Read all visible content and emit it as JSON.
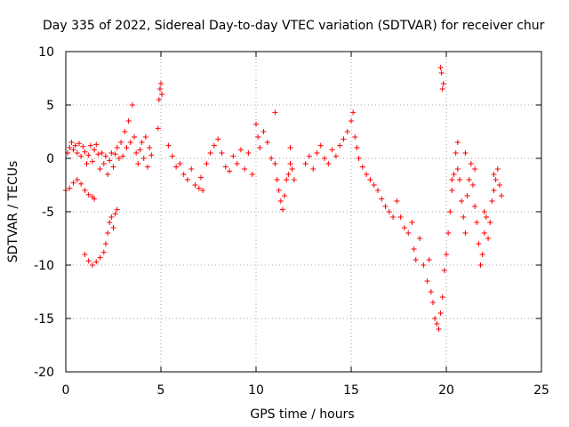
{
  "chart_data": {
    "type": "scatter",
    "title": "Day 335 of 2022, Sidereal Day-to-day VTEC variation (SDTVAR) for receiver chur",
    "xlabel": "GPS time / hours",
    "ylabel": "SDTVAR / TECUs",
    "xlim": [
      0,
      25
    ],
    "ylim": [
      -20,
      10
    ],
    "xticks": [
      0,
      5,
      10,
      15,
      20,
      25
    ],
    "yticks": [
      -20,
      -15,
      -10,
      -5,
      0,
      5,
      10
    ],
    "xtick_labels": [
      "0",
      "5",
      "10",
      "15",
      "20",
      "25"
    ],
    "ytick_labels": [
      "-20",
      "-15",
      "-10",
      "-5",
      "0",
      "5",
      "10"
    ],
    "grid": true,
    "marker": "+",
    "color": "#ff0000",
    "series": [
      {
        "name": "SDTVAR",
        "points": [
          [
            0.0,
            -3.0
          ],
          [
            0.1,
            0.5
          ],
          [
            0.2,
            1.0
          ],
          [
            0.3,
            1.5
          ],
          [
            0.4,
            0.8
          ],
          [
            0.5,
            1.2
          ],
          [
            0.6,
            0.5
          ],
          [
            0.7,
            1.4
          ],
          [
            0.8,
            0.2
          ],
          [
            0.9,
            1.1
          ],
          [
            1.0,
            0.6
          ],
          [
            1.1,
            -0.5
          ],
          [
            1.2,
            0.3
          ],
          [
            1.3,
            1.2
          ],
          [
            1.4,
            -0.3
          ],
          [
            1.5,
            0.8
          ],
          [
            1.6,
            1.3
          ],
          [
            1.7,
            0.4
          ],
          [
            1.8,
            -1.0
          ],
          [
            1.9,
            0.5
          ],
          [
            2.0,
            -0.5
          ],
          [
            2.1,
            0.2
          ],
          [
            2.2,
            -1.5
          ],
          [
            2.3,
            -0.2
          ],
          [
            2.4,
            0.5
          ],
          [
            2.5,
            -0.8
          ],
          [
            2.6,
            0.4
          ],
          [
            2.7,
            1.0
          ],
          [
            2.8,
            0.0
          ],
          [
            2.9,
            1.5
          ],
          [
            3.0,
            0.2
          ],
          [
            3.1,
            2.5
          ],
          [
            3.2,
            1.0
          ],
          [
            3.3,
            3.5
          ],
          [
            3.4,
            1.5
          ],
          [
            3.5,
            5.0
          ],
          [
            3.6,
            2.0
          ],
          [
            3.7,
            0.5
          ],
          [
            3.8,
            -0.5
          ],
          [
            3.9,
            0.8
          ],
          [
            4.0,
            1.5
          ],
          [
            4.1,
            0.0
          ],
          [
            4.2,
            2.0
          ],
          [
            4.3,
            -0.8
          ],
          [
            4.4,
            1.0
          ],
          [
            4.5,
            0.3
          ],
          [
            0.2,
            -2.8
          ],
          [
            0.4,
            -2.3
          ],
          [
            0.6,
            -2.0
          ],
          [
            0.8,
            -2.4
          ],
          [
            1.0,
            -3.0
          ],
          [
            1.2,
            -3.4
          ],
          [
            1.4,
            -3.6
          ],
          [
            1.5,
            -3.8
          ],
          [
            1.0,
            -9.0
          ],
          [
            1.2,
            -9.6
          ],
          [
            1.4,
            -10.0
          ],
          [
            1.6,
            -9.7
          ],
          [
            1.8,
            -9.3
          ],
          [
            2.0,
            -8.8
          ],
          [
            2.1,
            -8.0
          ],
          [
            2.2,
            -7.0
          ],
          [
            2.3,
            -6.0
          ],
          [
            2.4,
            -5.5
          ],
          [
            2.5,
            -6.5
          ],
          [
            2.6,
            -5.2
          ],
          [
            2.7,
            -4.8
          ],
          [
            4.85,
            2.8
          ],
          [
            4.9,
            5.5
          ],
          [
            4.95,
            6.5
          ],
          [
            5.0,
            7.0
          ],
          [
            5.05,
            6.0
          ],
          [
            5.4,
            1.2
          ],
          [
            5.6,
            0.2
          ],
          [
            5.8,
            -0.8
          ],
          [
            6.0,
            -0.5
          ],
          [
            6.2,
            -1.5
          ],
          [
            6.4,
            -2.0
          ],
          [
            6.6,
            -1.0
          ],
          [
            6.8,
            -2.5
          ],
          [
            7.0,
            -2.8
          ],
          [
            7.1,
            -1.8
          ],
          [
            7.2,
            -3.0
          ],
          [
            7.4,
            -0.5
          ],
          [
            7.6,
            0.5
          ],
          [
            7.8,
            1.2
          ],
          [
            8.0,
            1.8
          ],
          [
            8.2,
            0.5
          ],
          [
            8.4,
            -0.8
          ],
          [
            8.6,
            -1.2
          ],
          [
            8.8,
            0.2
          ],
          [
            9.0,
            -0.5
          ],
          [
            9.2,
            0.8
          ],
          [
            9.4,
            -1.0
          ],
          [
            9.6,
            0.5
          ],
          [
            9.8,
            -1.5
          ],
          [
            10.0,
            3.2
          ],
          [
            10.1,
            2.0
          ],
          [
            10.2,
            1.0
          ],
          [
            10.4,
            2.5
          ],
          [
            10.6,
            1.5
          ],
          [
            10.8,
            0.0
          ],
          [
            11.0,
            -0.5
          ],
          [
            11.1,
            -2.0
          ],
          [
            11.2,
            -3.0
          ],
          [
            11.3,
            -4.0
          ],
          [
            11.4,
            -4.8
          ],
          [
            11.5,
            -3.5
          ],
          [
            11.6,
            -2.0
          ],
          [
            11.7,
            -1.5
          ],
          [
            11.8,
            -0.5
          ],
          [
            11.9,
            -1.0
          ],
          [
            12.0,
            -2.0
          ],
          [
            11.0,
            4.3
          ],
          [
            11.8,
            1.0
          ],
          [
            12.6,
            -0.5
          ],
          [
            12.8,
            0.2
          ],
          [
            13.0,
            -1.0
          ],
          [
            13.2,
            0.5
          ],
          [
            13.4,
            1.2
          ],
          [
            13.6,
            0.0
          ],
          [
            13.8,
            -0.5
          ],
          [
            14.0,
            0.8
          ],
          [
            14.2,
            0.2
          ],
          [
            14.4,
            1.2
          ],
          [
            14.6,
            1.8
          ],
          [
            14.8,
            2.5
          ],
          [
            15.0,
            3.5
          ],
          [
            15.1,
            4.3
          ],
          [
            15.2,
            2.0
          ],
          [
            15.3,
            1.0
          ],
          [
            15.4,
            0.0
          ],
          [
            15.6,
            -0.8
          ],
          [
            15.8,
            -1.5
          ],
          [
            16.0,
            -2.0
          ],
          [
            16.2,
            -2.5
          ],
          [
            16.4,
            -3.0
          ],
          [
            16.6,
            -3.8
          ],
          [
            16.8,
            -4.5
          ],
          [
            17.0,
            -5.0
          ],
          [
            17.2,
            -5.5
          ],
          [
            17.4,
            -4.0
          ],
          [
            17.6,
            -5.5
          ],
          [
            17.8,
            -6.5
          ],
          [
            18.0,
            -7.0
          ],
          [
            18.2,
            -6.0
          ],
          [
            18.3,
            -8.5
          ],
          [
            18.4,
            -9.5
          ],
          [
            18.6,
            -7.5
          ],
          [
            18.8,
            -10.0
          ],
          [
            19.0,
            -11.5
          ],
          [
            19.1,
            -9.5
          ],
          [
            19.2,
            -12.5
          ],
          [
            19.3,
            -13.5
          ],
          [
            19.4,
            -15.0
          ],
          [
            19.5,
            -15.5
          ],
          [
            19.6,
            -16.0
          ],
          [
            19.7,
            -14.5
          ],
          [
            19.8,
            -13.0
          ],
          [
            19.9,
            -10.5
          ],
          [
            20.0,
            -9.0
          ],
          [
            20.1,
            -7.0
          ],
          [
            20.2,
            -5.0
          ],
          [
            20.3,
            -3.0
          ],
          [
            20.4,
            -1.5
          ],
          [
            20.5,
            0.5
          ],
          [
            20.6,
            -1.0
          ],
          [
            20.7,
            -2.0
          ],
          [
            20.8,
            -4.0
          ],
          [
            20.9,
            -5.5
          ],
          [
            21.0,
            -7.0
          ],
          [
            21.1,
            -3.5
          ],
          [
            21.2,
            -2.0
          ],
          [
            21.3,
            -0.5
          ],
          [
            21.4,
            -2.5
          ],
          [
            21.5,
            -4.5
          ],
          [
            21.6,
            -6.0
          ],
          [
            21.7,
            -8.0
          ],
          [
            21.8,
            -10.0
          ],
          [
            21.9,
            -9.0
          ],
          [
            22.0,
            -7.0
          ],
          [
            22.1,
            -5.5
          ],
          [
            22.2,
            -7.5
          ],
          [
            22.3,
            -6.0
          ],
          [
            22.4,
            -4.0
          ],
          [
            22.5,
            -3.0
          ],
          [
            22.6,
            -2.0
          ],
          [
            22.7,
            -1.0
          ],
          [
            22.8,
            -2.5
          ],
          [
            22.9,
            -3.5
          ],
          [
            19.7,
            8.5
          ],
          [
            19.75,
            8.0
          ],
          [
            19.8,
            6.5
          ],
          [
            19.85,
            7.0
          ],
          [
            20.3,
            -2.0
          ],
          [
            20.6,
            1.5
          ],
          [
            21.0,
            0.5
          ],
          [
            21.5,
            -1.0
          ],
          [
            22.0,
            -5.0
          ],
          [
            22.5,
            -1.5
          ]
        ]
      }
    ]
  }
}
